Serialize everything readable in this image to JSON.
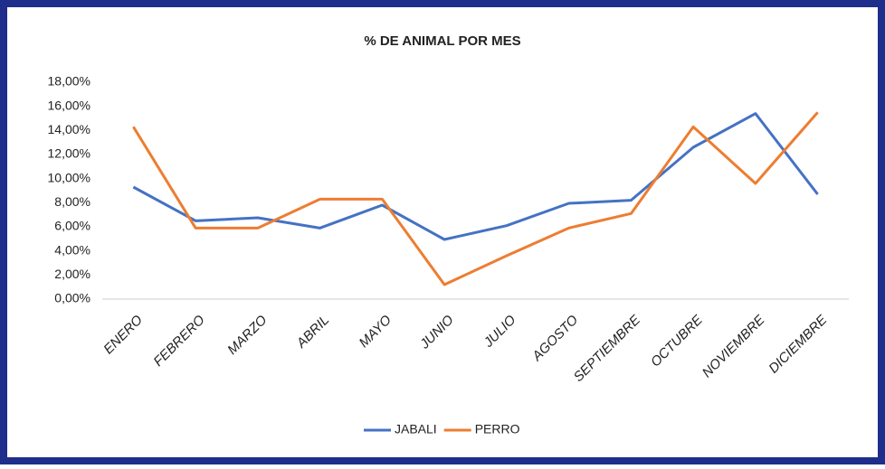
{
  "chart_data": {
    "type": "line",
    "title": "% DE ANIMAL POR MES",
    "categories": [
      "ENERO",
      "FEBRERO",
      "MARZO",
      "ABRIL",
      "MAYO",
      "JUNIO",
      "JULIO",
      "AGOSTO",
      "SEPTIEMBRE",
      "OCTUBRE",
      "NOVIEMBRE",
      "DICIEMBRE"
    ],
    "series": [
      {
        "name": "JABALI",
        "color": "#4472c4",
        "values": [
          9.3,
          6.5,
          6.75,
          5.9,
          7.8,
          4.95,
          6.1,
          7.95,
          8.2,
          12.6,
          15.4,
          8.7
        ]
      },
      {
        "name": "PERRO",
        "color": "#ed7d31",
        "values": [
          14.3,
          5.9,
          5.9,
          8.3,
          8.3,
          1.2,
          3.6,
          5.9,
          7.1,
          14.3,
          9.6,
          15.5
        ]
      }
    ],
    "ylim": [
      0,
      18
    ],
    "yticks": [
      {
        "value": 0,
        "label": "0,00%"
      },
      {
        "value": 2,
        "label": "2,00%"
      },
      {
        "value": 4,
        "label": "4,00%"
      },
      {
        "value": 6,
        "label": "6,00%"
      },
      {
        "value": 8,
        "label": "8,00%"
      },
      {
        "value": 10,
        "label": "10,00%"
      },
      {
        "value": 12,
        "label": "12,00%"
      },
      {
        "value": 14,
        "label": "14,00%"
      },
      {
        "value": 16,
        "label": "16,00%"
      },
      {
        "value": 18,
        "label": "18,00%"
      }
    ],
    "grid": false,
    "legend": "bottom"
  }
}
